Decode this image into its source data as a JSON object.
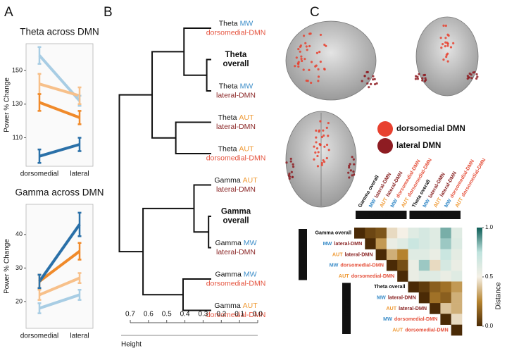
{
  "panels": [
    "A",
    "B",
    "C"
  ],
  "brain_legend": [
    {
      "label": "dorsomedial DMN",
      "color": "#e8412f"
    },
    {
      "label": "lateral DMN",
      "color": "#8e1c22"
    }
  ],
  "label_colors": {
    "MW": "#3d8ec9",
    "AUT": "#ef9a35",
    "dorsomedial-DMN": "#e5533e",
    "lateral-DMN": "#8b2727"
  },
  "chart_data": [
    {
      "type": "line",
      "title": "Theta across DMN",
      "ylabel": "Power % Change",
      "categories": [
        "dorsomedial",
        "lateral"
      ],
      "ylim": [
        93,
        166
      ],
      "yticks": [
        110,
        130,
        150
      ],
      "series": [
        {
          "color": "#a8cde4",
          "values": [
            159,
            132
          ],
          "errors": [
            5,
            3
          ]
        },
        {
          "color": "#f7c08a",
          "values": [
            142,
            135
          ],
          "errors": [
            6,
            5
          ]
        },
        {
          "color": "#f08a2a",
          "values": [
            131,
            122
          ],
          "errors": [
            5,
            4
          ]
        },
        {
          "color": "#2a70a8",
          "values": [
            99,
            106
          ],
          "errors": [
            4,
            4
          ]
        }
      ]
    },
    {
      "type": "line",
      "title": "Gamma across DMN",
      "ylabel": "Power % Change",
      "categories": [
        "dorsomedial",
        "lateral"
      ],
      "ylim": [
        12,
        49
      ],
      "yticks": [
        20,
        30,
        40
      ],
      "series": [
        {
          "color": "#a8cde4",
          "values": [
            18,
            22
          ],
          "errors": [
            1.5,
            1.5
          ]
        },
        {
          "color": "#f7c08a",
          "values": [
            22,
            27
          ],
          "errors": [
            1.5,
            1.5
          ]
        },
        {
          "color": "#f08a2a",
          "values": [
            26,
            35
          ],
          "errors": [
            2,
            2.5
          ]
        },
        {
          "color": "#2a70a8",
          "values": [
            26,
            43
          ],
          "errors": [
            2,
            3.5
          ]
        }
      ]
    },
    {
      "type": "dendrogram",
      "xlabel": "Height",
      "xlim": [
        0.7,
        0
      ],
      "xticks": [
        0.7,
        0.6,
        0.5,
        0.4,
        0.3,
        0.2,
        0.1,
        {
          "value": 0,
          "label": "0.0"
        }
      ],
      "leaves": [
        {
          "lines": [
            [
              "Theta",
              "MW"
            ],
            [
              "dorsomedial-DMN"
            ]
          ]
        },
        {
          "lines": [
            [
              "Theta"
            ],
            [
              "overall"
            ]
          ],
          "bold": true
        },
        {
          "lines": [
            [
              "Theta",
              "MW"
            ],
            [
              "lateral-DMN"
            ]
          ]
        },
        {
          "lines": [
            [
              "Theta",
              "AUT"
            ],
            [
              "lateral-DMN"
            ]
          ]
        },
        {
          "lines": [
            [
              "Theta",
              "AUT"
            ],
            [
              "dorsomedial-DMN"
            ]
          ]
        },
        {
          "lines": [
            [
              "Gamma",
              "AUT"
            ],
            [
              "lateral-DMN"
            ]
          ]
        },
        {
          "lines": [
            [
              "Gamma"
            ],
            [
              "overall"
            ]
          ],
          "bold": true
        },
        {
          "lines": [
            [
              "Gamma",
              "MW"
            ],
            [
              "lateral-DMN"
            ]
          ]
        },
        {
          "lines": [
            [
              "Gamma",
              "MW"
            ],
            [
              "dorsomedial-DMN"
            ]
          ]
        },
        {
          "lines": [
            [
              "Gamma",
              "AUT"
            ],
            [
              "dorsomedial-DMN"
            ]
          ]
        }
      ],
      "merges": [
        {
          "left": 1,
          "right": 2,
          "height": 0.28
        },
        {
          "left": 0,
          "right": 10,
          "height": 0.405
        },
        {
          "left": 3,
          "right": 4,
          "height": 0.45
        },
        {
          "left": 11,
          "right": 12,
          "height": 0.58
        },
        {
          "left": 6,
          "right": 7,
          "height": 0.27
        },
        {
          "left": 5,
          "right": 14,
          "height": 0.35
        },
        {
          "left": 8,
          "right": 9,
          "height": 0.41
        },
        {
          "left": 15,
          "right": 16,
          "height": 0.63
        },
        {
          "left": 13,
          "right": 17,
          "height": 0.76
        }
      ]
    },
    {
      "type": "heatmap",
      "groups": [
        "Gamma",
        "Theta"
      ],
      "labels": [
        [
          "Gamma overall"
        ],
        [
          "MW",
          "lateral-DMN"
        ],
        [
          "AUT",
          "lateral-DMN"
        ],
        [
          "MW",
          "dorsomedial-DMN"
        ],
        [
          "AUT",
          "dorsomedial-DMN"
        ],
        [
          "Theta overall"
        ],
        [
          "MW",
          "lateral-DMN"
        ],
        [
          "AUT",
          "lateral-DMN"
        ],
        [
          "MW",
          "dorsomedial-DMN"
        ],
        [
          "AUT",
          "dorsomedial-DMN"
        ]
      ],
      "z": [
        [
          0,
          0.08,
          0.12,
          0.45,
          0.5,
          0.6,
          0.65,
          0.6,
          0.85,
          0.6
        ],
        [
          null,
          0,
          0.3,
          0.55,
          0.6,
          0.7,
          0.65,
          0.6,
          0.8,
          0.62
        ],
        [
          null,
          null,
          0,
          0.35,
          0.25,
          0.6,
          0.6,
          0.55,
          0.7,
          0.58
        ],
        [
          null,
          null,
          null,
          0,
          0.1,
          0.55,
          0.8,
          0.45,
          0.65,
          0.55
        ],
        [
          null,
          null,
          null,
          null,
          0,
          0.55,
          0.6,
          0.6,
          0.55,
          0.6
        ],
        [
          null,
          null,
          null,
          null,
          null,
          0,
          0.05,
          0.15,
          0.2,
          0.3
        ],
        [
          null,
          null,
          null,
          null,
          null,
          null,
          0,
          0.2,
          0.15,
          0.35
        ],
        [
          null,
          null,
          null,
          null,
          null,
          null,
          null,
          0,
          0.4,
          0.35
        ],
        [
          null,
          null,
          null,
          null,
          null,
          null,
          null,
          null,
          0,
          0.45
        ],
        [
          null,
          null,
          null,
          null,
          null,
          null,
          null,
          null,
          null,
          0
        ]
      ],
      "zlim": [
        0,
        1
      ],
      "zticks": [
        {
          "value": 0,
          "label": "0.0"
        },
        0.5,
        {
          "value": 1,
          "label": "1.0"
        }
      ],
      "zlabel": "Distance",
      "colorscale": [
        [
          0,
          "#4a2a06"
        ],
        [
          0.25,
          "#b5832f"
        ],
        [
          0.5,
          "#f5f0e6"
        ],
        [
          0.75,
          "#bfe3de"
        ],
        [
          1,
          "#0e5e57"
        ]
      ]
    }
  ]
}
